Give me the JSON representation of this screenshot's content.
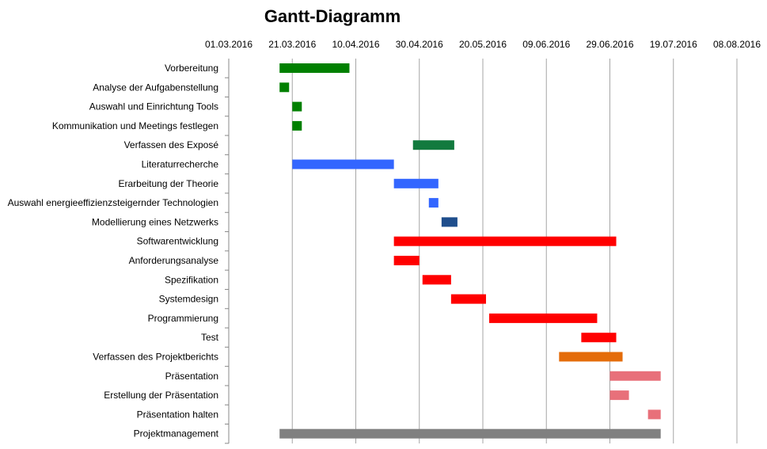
{
  "chart_data": {
    "type": "gantt",
    "title": "Gantt-Diagramm",
    "x_axis": {
      "type": "date",
      "min": "2016-03-01",
      "max": "2016-08-08",
      "tick_labels": [
        "01.03.2016",
        "21.03.2016",
        "10.04.2016",
        "30.04.2016",
        "20.05.2016",
        "09.06.2016",
        "29.06.2016",
        "19.07.2016",
        "08.08.2016"
      ],
      "position": "top",
      "grid": true
    },
    "tasks": [
      {
        "name": "Vorbereitung",
        "start": "2016-03-17",
        "end": "2016-04-08",
        "color": "#008000"
      },
      {
        "name": "Analyse der Aufgabenstellung",
        "start": "2016-03-17",
        "end": "2016-03-20",
        "color": "#008000"
      },
      {
        "name": "Auswahl und Einrichtung Tools",
        "start": "2016-03-21",
        "end": "2016-03-24",
        "color": "#008000"
      },
      {
        "name": "Kommunikation und Meetings festlegen",
        "start": "2016-03-21",
        "end": "2016-03-24",
        "color": "#008000"
      },
      {
        "name": "Verfassen des Exposé",
        "start": "2016-04-28",
        "end": "2016-05-11",
        "color": "#127a3e"
      },
      {
        "name": "Literaturrecherche",
        "start": "2016-03-21",
        "end": "2016-04-22",
        "color": "#3366ff"
      },
      {
        "name": "Erarbeitung der Theorie",
        "start": "2016-04-22",
        "end": "2016-05-06",
        "color": "#3366ff"
      },
      {
        "name": "Auswahl energieeffizienzsteigernder Technologien",
        "start": "2016-05-03",
        "end": "2016-05-06",
        "color": "#3366ff"
      },
      {
        "name": "Modellierung eines Netzwerks",
        "start": "2016-05-07",
        "end": "2016-05-12",
        "color": "#1f4e8c"
      },
      {
        "name": "Softwarentwicklung",
        "start": "2016-04-22",
        "end": "2016-07-01",
        "color": "#ff0000"
      },
      {
        "name": "Anforderungsanalyse",
        "start": "2016-04-22",
        "end": "2016-04-30",
        "color": "#ff0000"
      },
      {
        "name": "Spezifikation",
        "start": "2016-05-01",
        "end": "2016-05-10",
        "color": "#ff0000"
      },
      {
        "name": "Systemdesign",
        "start": "2016-05-10",
        "end": "2016-05-21",
        "color": "#ff0000"
      },
      {
        "name": "Programmierung",
        "start": "2016-05-22",
        "end": "2016-06-25",
        "color": "#ff0000"
      },
      {
        "name": "Test",
        "start": "2016-06-20",
        "end": "2016-07-01",
        "color": "#ff0000"
      },
      {
        "name": "Verfassen des Projektberichts",
        "start": "2016-06-13",
        "end": "2016-07-03",
        "color": "#e46c0a"
      },
      {
        "name": "Präsentation",
        "start": "2016-06-29",
        "end": "2016-07-15",
        "color": "#e8707a"
      },
      {
        "name": "Erstellung der Präsentation",
        "start": "2016-06-29",
        "end": "2016-07-05",
        "color": "#e8707a"
      },
      {
        "name": "Präsentation halten",
        "start": "2016-07-11",
        "end": "2016-07-15",
        "color": "#e8707a"
      },
      {
        "name": "Projektmanagement",
        "start": "2016-03-17",
        "end": "2016-07-15",
        "color": "#808080"
      }
    ]
  }
}
